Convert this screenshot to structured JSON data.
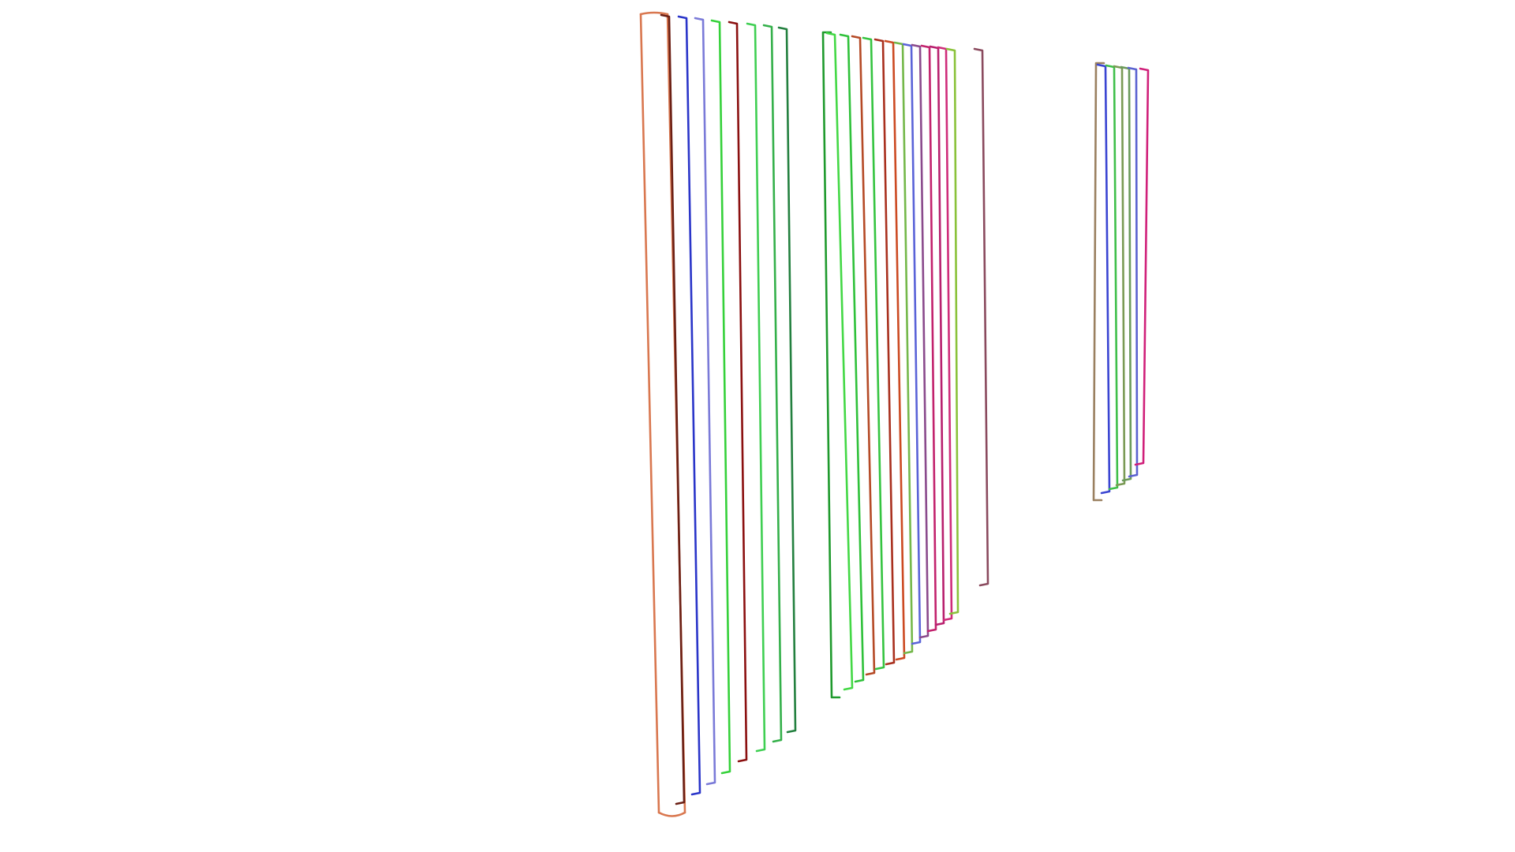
{
  "scene": {
    "background": "#ffffff",
    "groups": [
      {
        "id": "group-a",
        "colors": [
          "#d9774f",
          "#6b1f14",
          "#2a35c9",
          "#7a7ad8",
          "#35d13a",
          "#8b1010",
          "#3fcf52",
          "#34b04a",
          "#23803f"
        ]
      },
      {
        "id": "group-b",
        "colors": [
          "#1f9a2d",
          "#43d845",
          "#2fc13a",
          "#b54a26",
          "#35c440",
          "#a9301e",
          "#cc4a22",
          "#74b84a",
          "#5a63d8",
          "#8a4a8c",
          "#c2226d",
          "#b8206e",
          "#cf2c7a",
          "#8ac23a"
        ]
      },
      {
        "id": "group-c",
        "colors": [
          "#8a4a5e"
        ]
      },
      {
        "id": "group-d",
        "colors": [
          "#9a8060",
          "#3a45d2",
          "#3fbf4a",
          "#7a9a55",
          "#6a9a5a",
          "#5a62d0",
          "#d0207a"
        ]
      }
    ]
  }
}
